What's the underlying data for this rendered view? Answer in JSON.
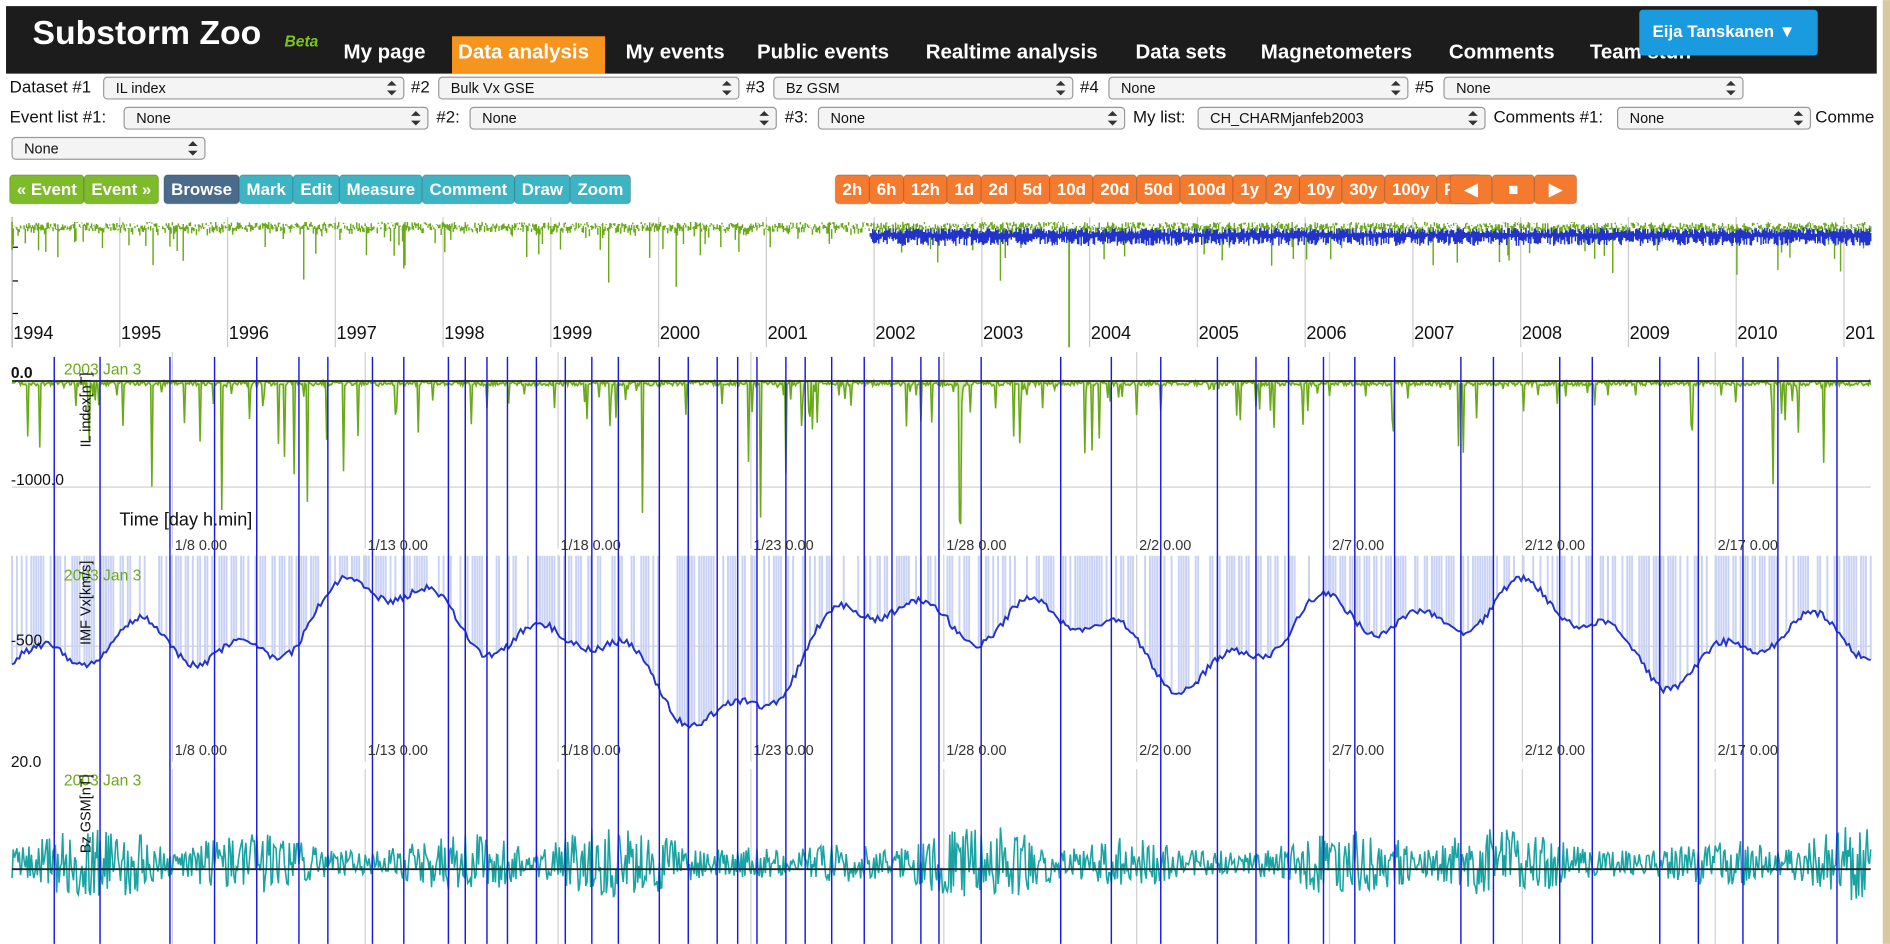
{
  "header": {
    "title": "Substorm Zoo",
    "badge": "Beta",
    "nav": [
      "My page",
      "Data analysis",
      "My events",
      "Public events",
      "Realtime analysis",
      "Data sets",
      "Magnetometers",
      "Comments",
      "Team stuff"
    ],
    "user": "Eija Tanskanen ▼"
  },
  "dataset_row": [
    {
      "label": "Dataset #1",
      "value": "IL index"
    },
    {
      "label": "#2",
      "value": "Bulk Vx GSE"
    },
    {
      "label": "#3",
      "value": "Bz GSM"
    },
    {
      "label": "#4",
      "value": "None"
    },
    {
      "label": "#5",
      "value": "None"
    }
  ],
  "event_row": [
    {
      "label": "Event list #1:",
      "value": "None"
    },
    {
      "label": "#2:",
      "value": "None"
    },
    {
      "label": "#3:",
      "value": "None"
    },
    {
      "label": "My list:",
      "value": "CH_CHARMjanfeb2003"
    },
    {
      "label": "Comments #1:",
      "value": "None"
    },
    {
      "label": "Comme"
    }
  ],
  "extra_select": "None",
  "toolbar": {
    "event_nav": [
      "« Event",
      "Event »"
    ],
    "tools": [
      "Browse",
      "Mark",
      "Edit",
      "Measure",
      "Comment",
      "Draw",
      "Zoom"
    ],
    "ranges": [
      "2h",
      "6h",
      "12h",
      "1d",
      "2d",
      "5d",
      "10d",
      "20d",
      "50d",
      "100d",
      "1y",
      "2y",
      "10y",
      "30y",
      "100y",
      "Full"
    ],
    "playback": [
      "◀",
      "■",
      "▶"
    ]
  },
  "overview": {
    "years": [
      "1994",
      "1995",
      "1996",
      "1997",
      "1998",
      "1999",
      "2000",
      "2001",
      "2002",
      "2003",
      "2004",
      "2005",
      "2006",
      "2007",
      "2008",
      "2009",
      "2010",
      "201"
    ]
  },
  "time_label": "Time [day h.min]",
  "dates": [
    "1/8 0.00",
    "1/13 0.00",
    "1/18 0.00",
    "1/23 0.00",
    "1/28 0.00",
    "2/2 0.00",
    "2/7 0.00",
    "2/12 0.00",
    "2/17 0.00"
  ],
  "panels": [
    {
      "date": "2003 Jan 3",
      "ylabel": "IL index[nT]",
      "ticks": [
        "0.0",
        "-1000.0"
      ]
    },
    {
      "date": "2003 Jan 3",
      "ylabel": "IMF Vx[km/s]",
      "ticks": [
        "-500",
        "20.0"
      ]
    },
    {
      "date": "2003 Jan 3",
      "ylabel": "Bz GSM[nT]",
      "ticks": []
    }
  ]
}
